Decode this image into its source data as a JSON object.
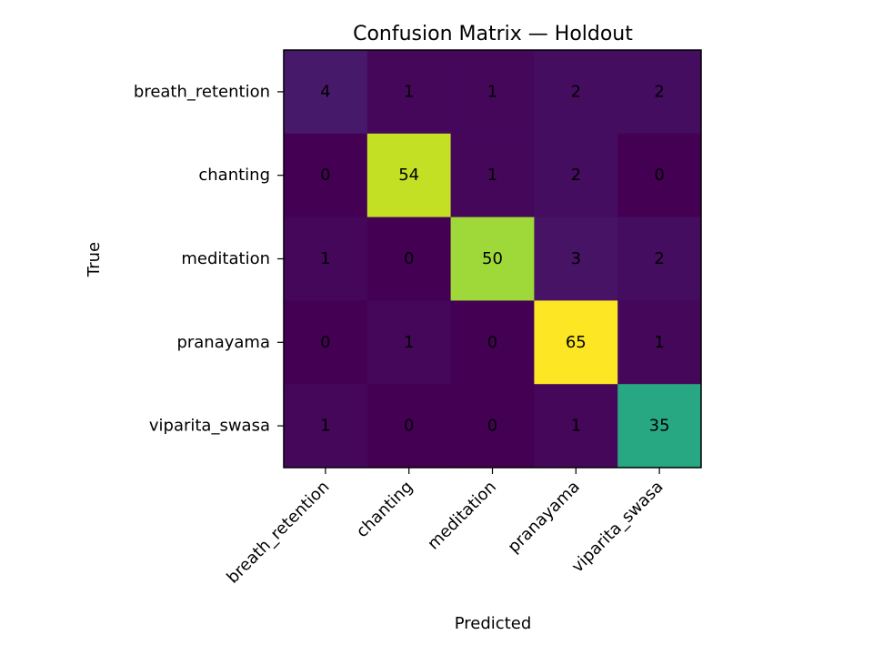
{
  "chart_data": {
    "type": "heatmap",
    "title": "Confusion Matrix — Holdout",
    "xlabel": "Predicted",
    "ylabel": "True",
    "x_categories": [
      "breath_retention",
      "chanting",
      "meditation",
      "pranayama",
      "viparita_swasa"
    ],
    "y_categories": [
      "breath_retention",
      "chanting",
      "meditation",
      "pranayama",
      "viparita_swasa"
    ],
    "matrix": [
      [
        4,
        1,
        1,
        2,
        2
      ],
      [
        0,
        54,
        1,
        2,
        0
      ],
      [
        1,
        0,
        50,
        3,
        2
      ],
      [
        0,
        1,
        0,
        65,
        1
      ],
      [
        1,
        0,
        0,
        1,
        35
      ]
    ],
    "colormap": "viridis",
    "value_range": [
      0,
      65
    ]
  }
}
